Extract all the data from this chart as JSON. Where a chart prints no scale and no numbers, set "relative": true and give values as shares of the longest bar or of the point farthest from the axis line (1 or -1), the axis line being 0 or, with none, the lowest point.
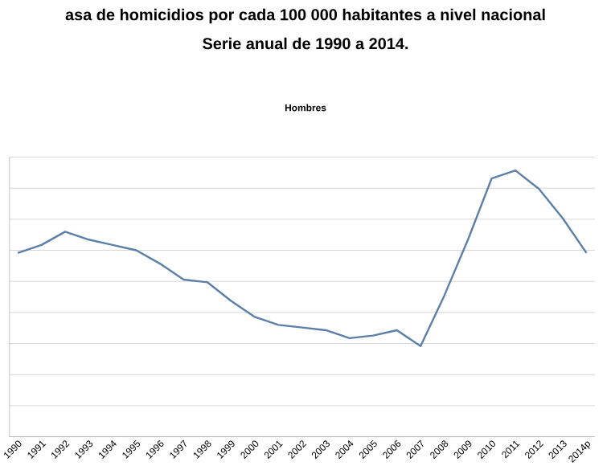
{
  "chart_data": {
    "type": "line",
    "title": "asa de homicidios por cada 100 000 habitantes a nivel nacional",
    "subtitle": "Serie anual de 1990 a 2014.",
    "annotations": [
      "Hombres"
    ],
    "categories": [
      "1990",
      "1991",
      "1992",
      "1993",
      "1994",
      "1995",
      "1996",
      "1997",
      "1998",
      "1999",
      "2000",
      "2001",
      "2002",
      "2003",
      "2004",
      "2005",
      "2006",
      "2007",
      "2008",
      "2009",
      "2010",
      "2011",
      "2012",
      "2013",
      "2014p"
    ],
    "series": [
      {
        "color": "#5b7fa8",
        "values": [
          0.69,
          0.72,
          0.77,
          0.74,
          0.72,
          0.7,
          0.65,
          0.59,
          0.58,
          0.51,
          0.45,
          0.42,
          0.41,
          0.4,
          0.37,
          0.38,
          0.4,
          0.34,
          0.53,
          0.74,
          0.97,
          1.0,
          0.93,
          0.82,
          0.69
        ]
      }
    ],
    "relative": true,
    "grid": "y",
    "marker": "none",
    "line_style": "solid"
  }
}
